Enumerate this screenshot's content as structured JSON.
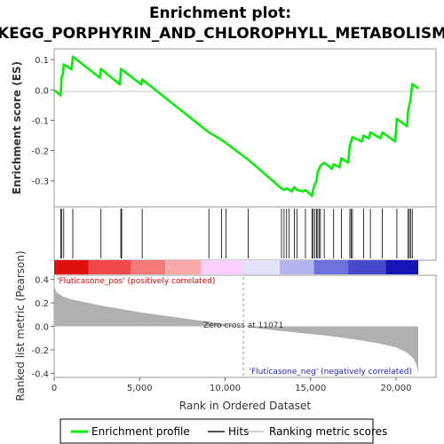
{
  "chart_data": {
    "type": "line",
    "title_line1": "Enrichment plot:",
    "title_line2": "KEGG_PORPHYRIN_AND_CHLOROPHYLL_METABOLISM",
    "xlabel": "Rank in Ordered Dataset",
    "ylabel_top": "Enrichment score (ES)",
    "ylabel_bottom": "Ranked list metric (Pearson)",
    "xlim": [
      0,
      21300
    ],
    "x_ticks": [
      0,
      5000,
      10000,
      15000,
      20000
    ],
    "x_tick_labels": [
      "0",
      "5,000",
      "10,000",
      "15,000",
      "20,000"
    ],
    "es_ylim": [
      -0.38,
      0.13
    ],
    "es_ticks": [
      0.1,
      0.0,
      -0.1,
      -0.2,
      -0.3
    ],
    "es_tick_labels": [
      "0.1",
      "0.0",
      "-0.1",
      "-0.2",
      "-0.3"
    ],
    "metric_ylim": [
      -0.42,
      0.42
    ],
    "metric_ticks": [
      0.4,
      0.2,
      0.0,
      -0.2,
      -0.4
    ],
    "metric_tick_labels": [
      "0.4",
      "0.2",
      "0.0",
      "-0.2",
      "-0.4"
    ],
    "es_series": {
      "name": "Enrichment profile",
      "color": "#00ee00",
      "points": [
        [
          0,
          0.0
        ],
        [
          380,
          -0.018
        ],
        [
          430,
          0.04
        ],
        [
          520,
          0.055
        ],
        [
          560,
          0.085
        ],
        [
          1020,
          0.068
        ],
        [
          1090,
          0.11
        ],
        [
          2680,
          0.04
        ],
        [
          2740,
          0.07
        ],
        [
          3850,
          0.018
        ],
        [
          3900,
          0.07
        ],
        [
          5100,
          0.018
        ],
        [
          5150,
          0.035
        ],
        [
          9050,
          -0.14
        ],
        [
          9800,
          -0.165
        ],
        [
          10050,
          -0.175
        ],
        [
          11350,
          -0.23
        ],
        [
          13300,
          -0.325
        ],
        [
          13450,
          -0.33
        ],
        [
          13600,
          -0.325
        ],
        [
          13750,
          -0.33
        ],
        [
          13900,
          -0.335
        ],
        [
          14050,
          -0.32
        ],
        [
          14200,
          -0.33
        ],
        [
          14600,
          -0.335
        ],
        [
          14700,
          -0.33
        ],
        [
          15000,
          -0.345
        ],
        [
          15080,
          -0.35
        ],
        [
          15150,
          -0.33
        ],
        [
          15250,
          -0.31
        ],
        [
          15350,
          -0.3
        ],
        [
          15420,
          -0.27
        ],
        [
          15500,
          -0.26
        ],
        [
          15580,
          -0.25
        ],
        [
          15800,
          -0.24
        ],
        [
          16250,
          -0.26
        ],
        [
          16350,
          -0.245
        ],
        [
          16700,
          -0.255
        ],
        [
          16800,
          -0.225
        ],
        [
          17200,
          -0.24
        ],
        [
          17300,
          -0.18
        ],
        [
          17380,
          -0.17
        ],
        [
          17450,
          -0.155
        ],
        [
          18000,
          -0.17
        ],
        [
          18100,
          -0.15
        ],
        [
          18400,
          -0.16
        ],
        [
          18500,
          -0.14
        ],
        [
          19100,
          -0.16
        ],
        [
          19200,
          -0.14
        ],
        [
          19950,
          -0.17
        ],
        [
          20050,
          -0.095
        ],
        [
          20650,
          -0.12
        ],
        [
          20700,
          -0.07
        ],
        [
          20780,
          -0.05
        ],
        [
          20850,
          -0.03
        ],
        [
          20950,
          0.02
        ],
        [
          21300,
          0.005
        ]
      ]
    },
    "hits": [
      380,
      430,
      560,
      1090,
      2740,
      3900,
      3950,
      5150,
      9050,
      9800,
      10050,
      11350,
      13300,
      13450,
      13600,
      13750,
      14050,
      14200,
      14700,
      15080,
      15150,
      15250,
      15350,
      15420,
      15500,
      15580,
      15800,
      16350,
      16800,
      17300,
      17380,
      17450,
      18100,
      18500,
      19200,
      20050,
      20700,
      20780,
      20850,
      20950
    ],
    "zero_cross_rank": 11071,
    "metric_profile": [
      [
        0,
        0.41
      ],
      [
        30,
        0.33
      ],
      [
        150,
        0.29
      ],
      [
        500,
        0.255
      ],
      [
        1000,
        0.23
      ],
      [
        2000,
        0.2
      ],
      [
        3000,
        0.17
      ],
      [
        4000,
        0.145
      ],
      [
        5000,
        0.12
      ],
      [
        6000,
        0.1
      ],
      [
        7000,
        0.08
      ],
      [
        8000,
        0.06
      ],
      [
        9000,
        0.04
      ],
      [
        10000,
        0.02
      ],
      [
        11071,
        0.0
      ],
      [
        12000,
        -0.02
      ],
      [
        13000,
        -0.035
      ],
      [
        14000,
        -0.05
      ],
      [
        15000,
        -0.065
      ],
      [
        16000,
        -0.08
      ],
      [
        17000,
        -0.1
      ],
      [
        18000,
        -0.12
      ],
      [
        19000,
        -0.145
      ],
      [
        20000,
        -0.18
      ],
      [
        20600,
        -0.22
      ],
      [
        21000,
        -0.27
      ],
      [
        21200,
        -0.33
      ],
      [
        21300,
        -0.4
      ]
    ],
    "pos_label": "'Fluticasone_pos' (positively correlated)",
    "neg_label": "'Fluticasone_neg' (negatively correlated)",
    "zero_cross_label": "Zero cross at 11071",
    "colors": {
      "es_line": "#00ee00",
      "hit_line": "#000000",
      "metric_fill": "#b0b0b0",
      "pos_text": "#ee0000",
      "neg_text": "#2222cc",
      "frame": "#999999"
    },
    "legend": {
      "position": "bottom",
      "entries": [
        "Enrichment profile",
        "Hits",
        "Ranking metric scores"
      ]
    }
  }
}
